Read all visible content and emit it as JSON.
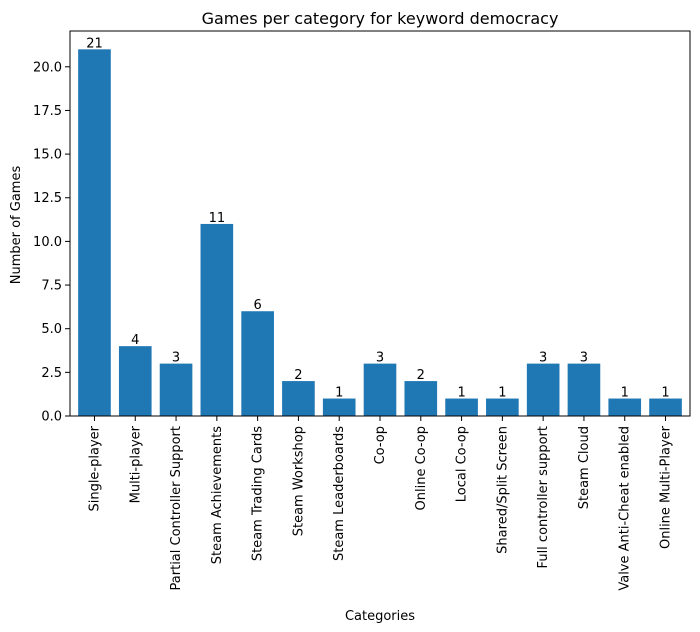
{
  "chart_data": {
    "type": "bar",
    "title": "Games per category for keyword democracy",
    "xlabel": "Categories",
    "ylabel": "Number of Games",
    "categories": [
      "Single-player",
      "Multi-player",
      "Partial Controller Support",
      "Steam Achievements",
      "Steam Trading Cards",
      "Steam Workshop",
      "Steam Leaderboards",
      "Co-op",
      "Online Co-op",
      "Local Co-op",
      "Shared/Split Screen",
      "Full controller support",
      "Steam Cloud",
      "Valve Anti-Cheat enabled",
      "Online Multi-Player"
    ],
    "values": [
      21,
      4,
      3,
      11,
      6,
      2,
      1,
      3,
      2,
      1,
      1,
      3,
      3,
      1,
      1
    ],
    "data_labels": [
      "21",
      "4",
      "3",
      "11",
      "6",
      "2",
      "1",
      "3",
      "2",
      "1",
      "1",
      "3",
      "3",
      "1",
      "1"
    ],
    "ylim": [
      0,
      22.05
    ],
    "yticks": [
      0,
      2.5,
      5,
      7.5,
      10,
      12.5,
      15,
      17.5,
      20
    ],
    "ytick_labels": [
      "0.0",
      "2.5",
      "5.0",
      "7.5",
      "10.0",
      "12.5",
      "15.0",
      "17.5",
      "20.0"
    ],
    "bar_color": "#1f77b4",
    "grid": false,
    "legend": "none"
  }
}
